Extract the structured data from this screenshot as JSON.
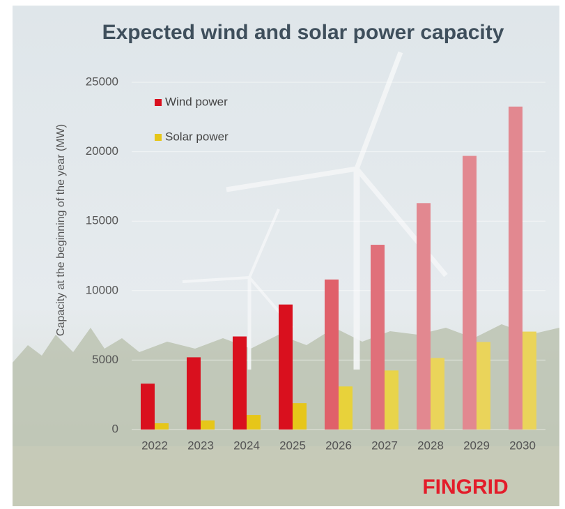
{
  "chart_data": {
    "type": "bar",
    "title": "Expected wind and solar power capacity",
    "y_label": "Capacity at the beginning of the year (MW)",
    "brand": "FINGRID",
    "categories": [
      "2022",
      "2023",
      "2024",
      "2025",
      "2026",
      "2027",
      "2028",
      "2029",
      "2030"
    ],
    "series": [
      {
        "name": "Wind power",
        "color": "#d9101e",
        "colors": [
          "#d9101e",
          "#d9101e",
          "#d9101e",
          "#d9101e",
          "#e0606a",
          "#e0707a",
          "#e28890",
          "#e28890",
          "#e28890"
        ],
        "values": [
          3300,
          5200,
          6700,
          9000,
          10800,
          13300,
          16300,
          19700,
          23250
        ]
      },
      {
        "name": "Solar power",
        "color": "#e6c619",
        "colors": [
          "#e6c619",
          "#e6c619",
          "#e6c619",
          "#e6c619",
          "#e8d23a",
          "#e8d44a",
          "#ead45a",
          "#ead45a",
          "#ead45a"
        ],
        "values": [
          450,
          650,
          1050,
          1900,
          3100,
          4250,
          5150,
          6300,
          7050
        ]
      }
    ],
    "ylim": [
      0,
      25000
    ],
    "yticks": [
      0,
      5000,
      10000,
      15000,
      20000,
      25000
    ],
    "grid": true,
    "legend": "upper left"
  }
}
